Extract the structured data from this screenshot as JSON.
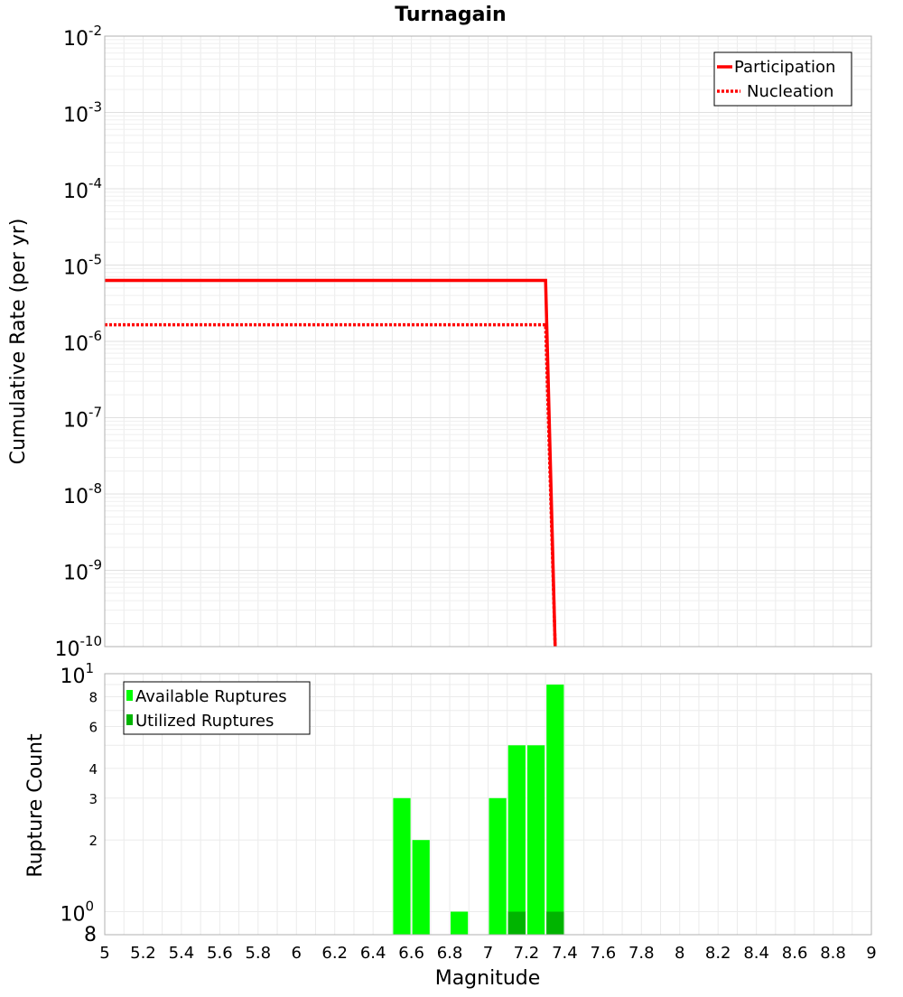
{
  "chart_data": [
    {
      "type": "line",
      "title": "Turnagain",
      "xlabel": "",
      "ylabel": "Cumulative Rate (per yr)",
      "xlim": [
        5,
        9
      ],
      "ylim": [
        1e-10,
        0.01
      ],
      "yscale": "log",
      "grid": true,
      "legend_position": "top-right",
      "y_ticks": [
        {
          "base": "10",
          "exp": "-2",
          "value": 0.01
        },
        {
          "base": "10",
          "exp": "-3",
          "value": 0.001
        },
        {
          "base": "10",
          "exp": "-4",
          "value": 0.0001
        },
        {
          "base": "10",
          "exp": "-5",
          "value": 1e-05
        },
        {
          "base": "10",
          "exp": "-6",
          "value": 1e-06
        },
        {
          "base": "10",
          "exp": "-7",
          "value": 1e-07
        },
        {
          "base": "10",
          "exp": "-8",
          "value": 1e-08
        },
        {
          "base": "10",
          "exp": "-9",
          "value": 1e-09
        },
        {
          "base": "10",
          "exp": "-10",
          "value": 1e-10
        }
      ],
      "series": [
        {
          "name": "Participation",
          "color": "#ff0000",
          "dash": "solid",
          "x": [
            5,
            7.3,
            7.35
          ],
          "y": [
            6.3e-06,
            6.3e-06,
            1e-10
          ]
        },
        {
          "name": "Nucleation",
          "color": "#ff0000",
          "dash": "dotted",
          "x": [
            5,
            7.3,
            7.35
          ],
          "y": [
            1.65e-06,
            1.65e-06,
            1e-10
          ]
        }
      ]
    },
    {
      "type": "bar",
      "xlabel": "Magnitude",
      "ylabel": "Rupture Count",
      "xlim": [
        5,
        9
      ],
      "ylim": [
        0.8,
        10
      ],
      "yscale": "log",
      "grid": true,
      "legend_position": "top-left",
      "x_ticks": [
        "5",
        "5.2",
        "5.4",
        "5.6",
        "5.8",
        "6",
        "6.2",
        "6.4",
        "6.6",
        "6.8",
        "7",
        "7.2",
        "7.4",
        "7.6",
        "7.8",
        "8",
        "8.2",
        "8.4",
        "8.6",
        "8.8",
        "9"
      ],
      "y_ticks_major": [
        {
          "base": "10",
          "exp": "1",
          "value": 10
        },
        {
          "base": "10",
          "exp": "0",
          "value": 1
        }
      ],
      "y_ticks_minor": [
        {
          "label": "8",
          "value": 8
        },
        {
          "label": "6",
          "value": 6
        },
        {
          "label": "4",
          "value": 4
        },
        {
          "label": "3",
          "value": 3
        },
        {
          "label": "2",
          "value": 2
        }
      ],
      "y_bottom_label": "8",
      "bar_width": 0.1,
      "series": [
        {
          "name": "Available Ruptures",
          "color": "#00ff00",
          "x": [
            6.55,
            6.65,
            6.85,
            7.05,
            7.15,
            7.25,
            7.35
          ],
          "values": [
            3,
            2,
            1,
            3,
            5,
            5,
            9
          ]
        },
        {
          "name": "Utilized Ruptures",
          "color": "#00b400",
          "x": [
            7.15,
            7.35
          ],
          "values": [
            1,
            1
          ]
        }
      ]
    }
  ]
}
